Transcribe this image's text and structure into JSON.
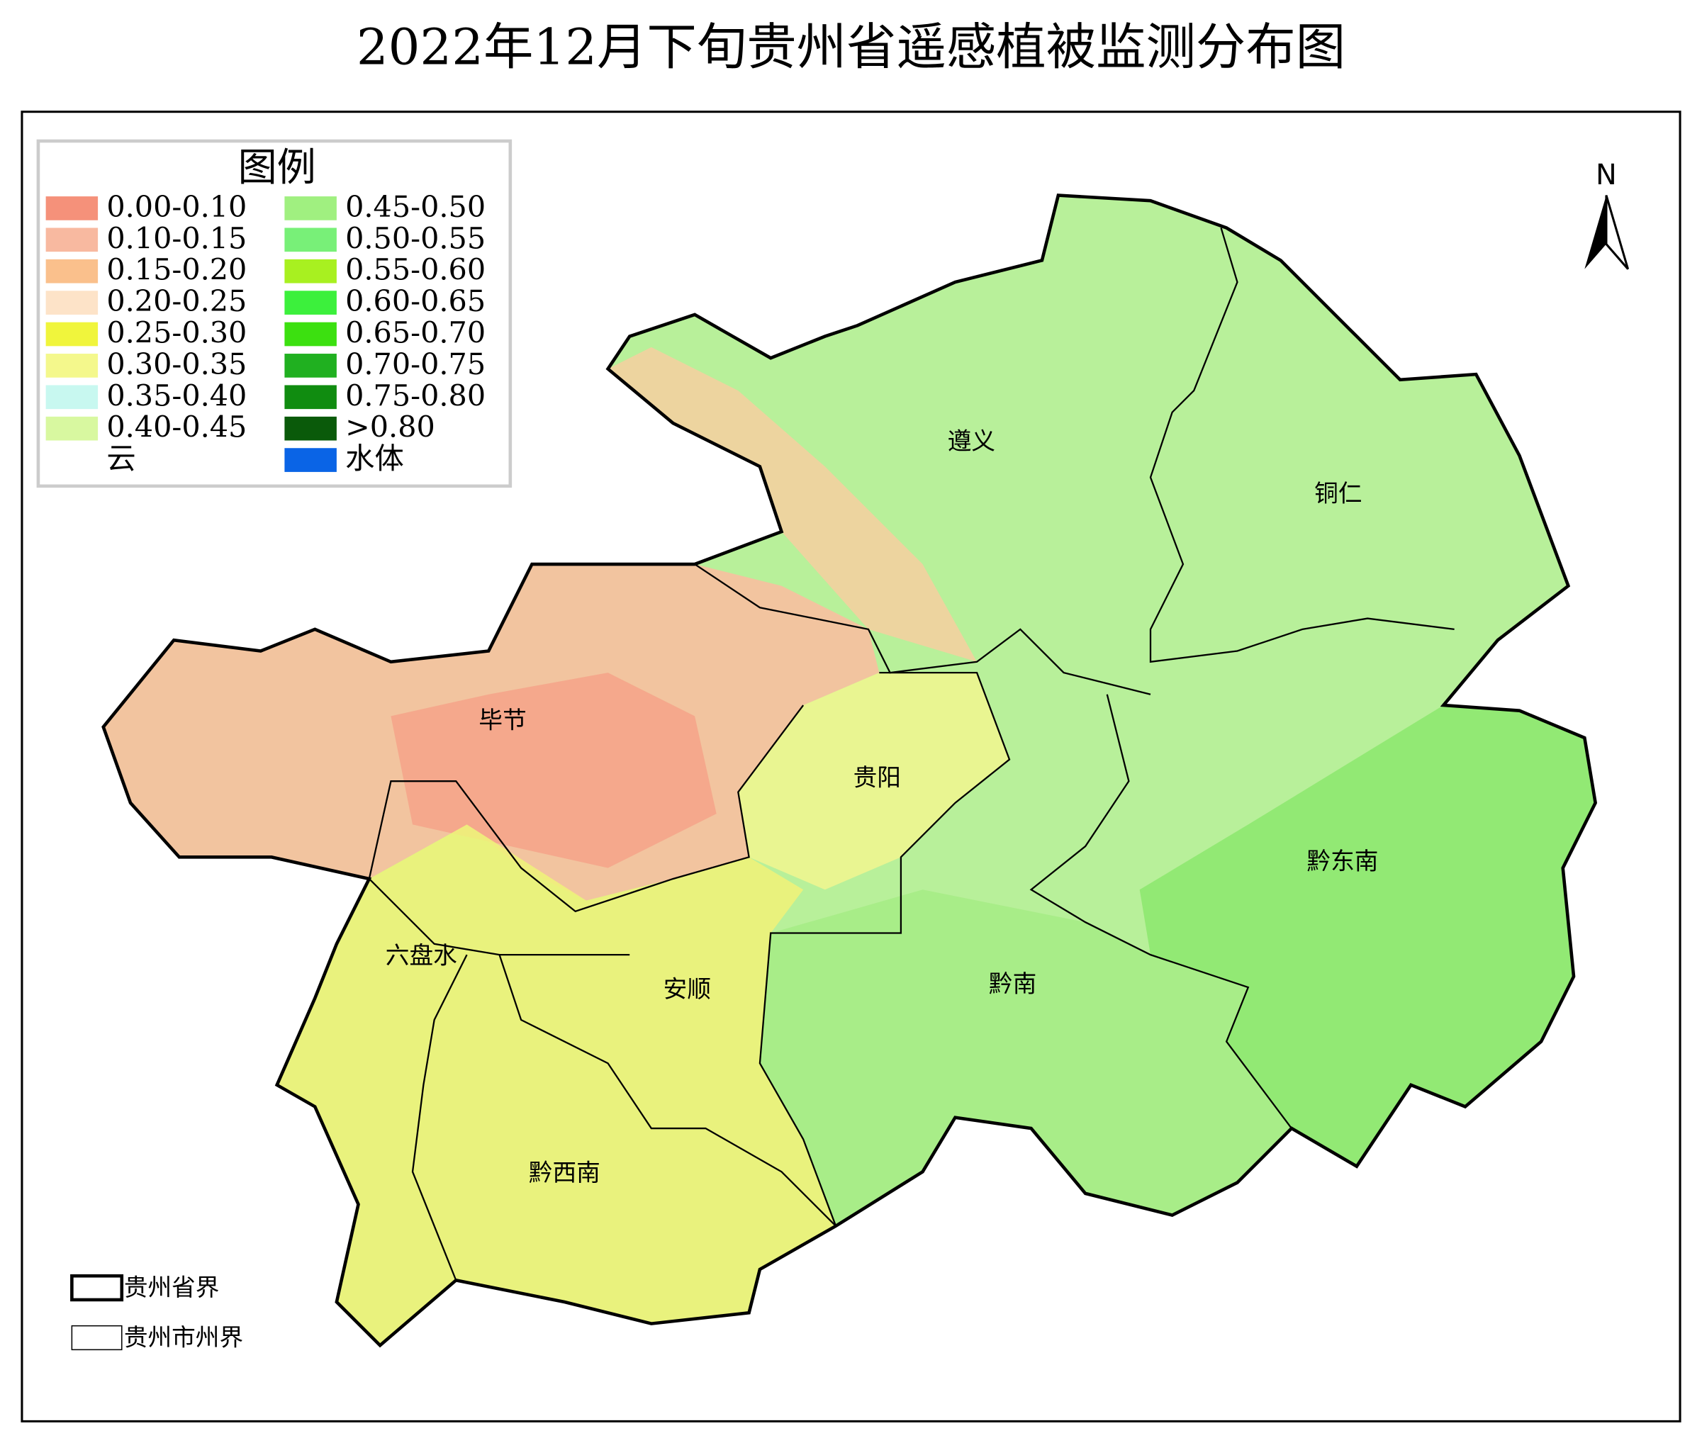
{
  "header": {
    "title": "2022年12月下旬贵州省遥感植被监测分布图"
  },
  "legend": {
    "title": "图例",
    "items": [
      {
        "label": "0.00-0.10",
        "color": "#f5917a"
      },
      {
        "label": "0.10-0.15",
        "color": "#f8b9a0"
      },
      {
        "label": "0.15-0.20",
        "color": "#fac08c"
      },
      {
        "label": "0.20-0.25",
        "color": "#fde3c8"
      },
      {
        "label": "0.25-0.30",
        "color": "#f0f53c"
      },
      {
        "label": "0.30-0.35",
        "color": "#f4f88c"
      },
      {
        "label": "0.35-0.40",
        "color": "#c8f8f0"
      },
      {
        "label": "0.40-0.45",
        "color": "#d8f8a0"
      },
      {
        "label": "云",
        "color": "#ffffff"
      },
      {
        "label": "0.45-0.50",
        "color": "#a0f080"
      },
      {
        "label": "0.50-0.55",
        "color": "#78f078"
      },
      {
        "label": "0.55-0.60",
        "color": "#a8f020"
      },
      {
        "label": "0.60-0.65",
        "color": "#3cf03c"
      },
      {
        "label": "0.65-0.70",
        "color": "#3ce010"
      },
      {
        "label": "0.70-0.75",
        "color": "#20b020"
      },
      {
        "label": "0.75-0.80",
        "color": "#108c10"
      },
      {
        "label": ">0.80",
        "color": "#0a5a0a"
      },
      {
        "label": "水体",
        "color": "#0a64e6"
      }
    ]
  },
  "map": {
    "regions": [
      "遵义",
      "铜仁",
      "毕节",
      "贵阳",
      "黔东南",
      "六盘水",
      "安顺",
      "黔南",
      "黔西南"
    ]
  },
  "north": "N",
  "boundary_legend": [
    "贵州省界",
    "贵州市州界"
  ]
}
